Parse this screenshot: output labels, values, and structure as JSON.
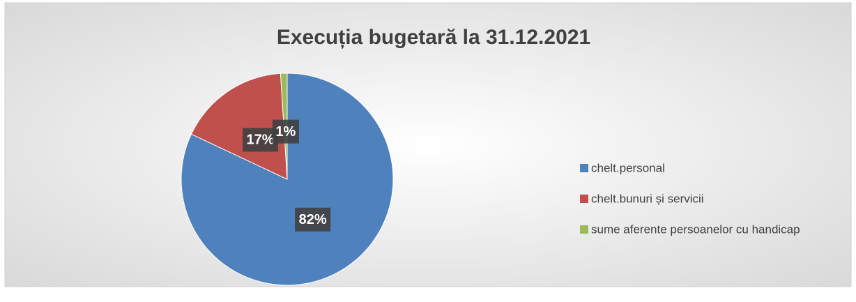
{
  "chart_data": {
    "type": "pie",
    "title": "Execuția bugetară la 31.12.2021",
    "categories": [
      "chelt.personal",
      "chelt.bunuri și servicii",
      "sume aferente persoanelor cu handicap"
    ],
    "values": [
      82,
      17,
      1
    ],
    "value_labels": [
      "82%",
      "17%",
      "1%"
    ],
    "colors": [
      "#4f81bd",
      "#c0504d",
      "#9bbb59"
    ],
    "legend": "right"
  }
}
